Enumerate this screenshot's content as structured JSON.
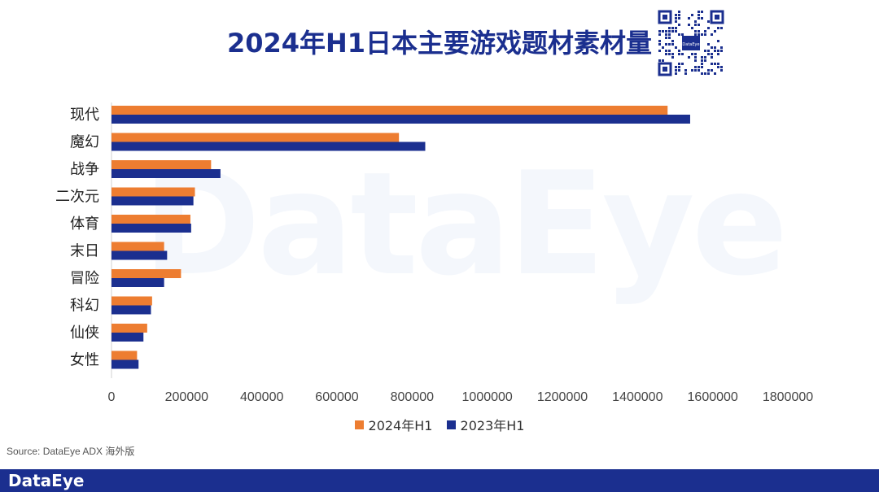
{
  "title": "2024年H1日本主要游戏题材素材量",
  "watermark": "DataEye",
  "source": "Source: DataEye ADX 海外版",
  "footer_logo": "DataEye",
  "qr_label": "DataEye",
  "colors": {
    "series_2024": "#ed7d31",
    "series_2023": "#1b2f8f",
    "brand": "#1b2f8f"
  },
  "chart_data": {
    "type": "bar",
    "orientation": "horizontal",
    "categories": [
      "现代",
      "魔幻",
      "战争",
      "二次元",
      "体育",
      "末日",
      "冒险",
      "科幻",
      "仙侠",
      "女性"
    ],
    "series": [
      {
        "name": "2024年H1",
        "values": [
          1480000,
          765000,
          265000,
          222000,
          210000,
          140000,
          185000,
          108000,
          95000,
          68000
        ]
      },
      {
        "name": "2023年H1",
        "values": [
          1540000,
          835000,
          290000,
          218000,
          212000,
          148000,
          140000,
          105000,
          85000,
          72000
        ]
      }
    ],
    "xlim": [
      0,
      1800000
    ],
    "xticks": [
      "0",
      "200000",
      "400000",
      "600000",
      "800000",
      "1000000",
      "1200000",
      "1400000",
      "1600000",
      "1800000"
    ],
    "legend_position": "bottom",
    "grid": false
  }
}
